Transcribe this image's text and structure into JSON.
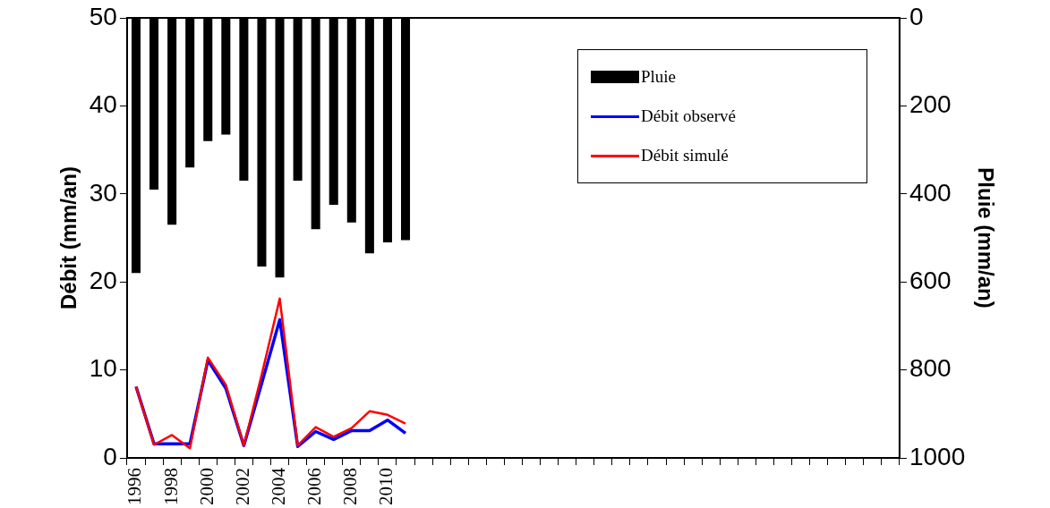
{
  "chart_data": {
    "type": "line",
    "ylabel": "Débit (mm/an)",
    "y2label": "Pluie (mm/an)",
    "categories": [
      "1996",
      null,
      "1998",
      null,
      "2000",
      null,
      "2002",
      null,
      "2004",
      null,
      "2006",
      null,
      "2008",
      null,
      "2010",
      null,
      null,
      null,
      null,
      null,
      null,
      null,
      null,
      null,
      null,
      null,
      null,
      null,
      null,
      null,
      null,
      null,
      null,
      null,
      null,
      null,
      null,
      null,
      null,
      null,
      null,
      null,
      null
    ],
    "series": [
      {
        "name": "Pluie",
        "type": "bar",
        "axis": "y2",
        "color": "#000000",
        "values": [
          580,
          390,
          470,
          340,
          280,
          265,
          370,
          565,
          590,
          370,
          480,
          425,
          465,
          535,
          510,
          505,
          null,
          null,
          null,
          null,
          null,
          null,
          null,
          null,
          null,
          null,
          null,
          null,
          null,
          null,
          null,
          null,
          null,
          null,
          null,
          null,
          null,
          null,
          null,
          null,
          null,
          null,
          null
        ]
      },
      {
        "name": "Débit observé",
        "color": "#0000ff",
        "values": [
          8.1,
          1.6,
          1.6,
          1.6,
          11.1,
          7.9,
          1.4,
          8.5,
          15.7,
          1.3,
          3.0,
          2.1,
          3.1,
          3.1,
          4.3,
          2.8,
          null,
          null,
          null,
          null,
          null,
          null,
          null,
          null,
          null,
          null,
          null,
          null,
          null,
          null,
          null,
          null,
          null,
          null,
          null,
          null,
          null,
          null,
          null,
          null,
          null,
          null,
          null
        ]
      },
      {
        "name": "Débit simulé",
        "color": "#ff0000",
        "values": [
          8.1,
          1.5,
          2.6,
          1.1,
          11.4,
          8.3,
          1.4,
          9.5,
          18.1,
          1.4,
          3.5,
          2.4,
          3.4,
          5.3,
          4.9,
          3.9,
          null,
          null,
          null,
          null,
          null,
          null,
          null,
          null,
          null,
          null,
          null,
          null,
          null,
          null,
          null,
          null,
          null,
          null,
          null,
          null,
          null,
          null,
          null,
          null,
          null,
          null,
          null
        ]
      }
    ],
    "ylim": [
      0,
      50
    ],
    "yticks": [
      0,
      10,
      20,
      30,
      40,
      50
    ],
    "y2lim": [
      1000,
      0
    ],
    "y2ticks": [
      0,
      200,
      400,
      600,
      800,
      1000
    ],
    "grid": false,
    "legend": "top right",
    "marker": "none",
    "line_style": "solid"
  }
}
